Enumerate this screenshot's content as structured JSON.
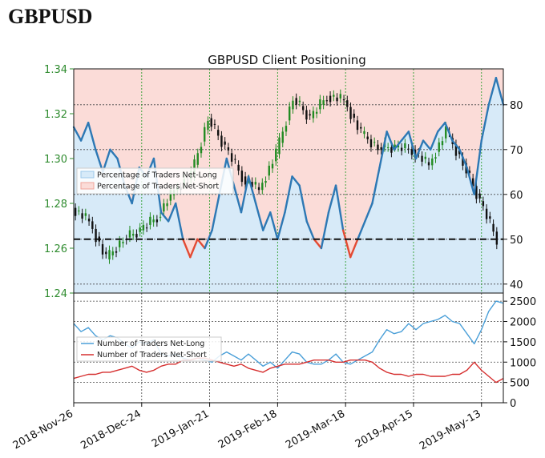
{
  "page_title": "GBPUSD",
  "colors": {
    "price_axis": "#2e8b2e",
    "long_fill": "#d7eaf8",
    "short_fill": "#fbdcd8",
    "pct_long_line": "#2d78b4",
    "pct_short_line": "#e34a33",
    "count_long_line": "#4a9fd8",
    "count_short_line": "#d62f2f",
    "candle_up": "#228b22",
    "candle_down": "#111111"
  },
  "chart_data": [
    {
      "type": "line",
      "title": "GBPUSD Client Positioning",
      "x_ticks": [
        "2018-Nov-26",
        "2018-Dec-24",
        "2019-Jan-21",
        "2019-Feb-18",
        "2019-Mar-18",
        "2019-Apr-15",
        "2019-May-13"
      ],
      "x_start": "2018-Nov-26",
      "x_end": "2019-May-22",
      "price_axis": {
        "side": "left",
        "ylim": [
          1.24,
          1.34
        ],
        "ticks": [
          "1.24",
          "1.26",
          "1.28",
          "1.30",
          "1.32",
          "1.34"
        ]
      },
      "pct_axis": {
        "side": "right",
        "ylim": [
          38,
          88
        ],
        "ticks": [
          "40",
          "50",
          "60",
          "70",
          "80"
        ]
      },
      "reference_line": 50,
      "legend": {
        "placement": "center-left",
        "entries": [
          "Percentage of Traders Net-Long",
          "Percentage of Traders Net-Short"
        ]
      },
      "grid": true,
      "series": [
        {
          "name": "Percentage of Traders Net-Long",
          "axis": "pct",
          "x": [
            "2018-Nov-26",
            "2018-Nov-29",
            "2018-Dec-02",
            "2018-Dec-05",
            "2018-Dec-08",
            "2018-Dec-11",
            "2018-Dec-14",
            "2018-Dec-17",
            "2018-Dec-20",
            "2018-Dec-23",
            "2018-Dec-26",
            "2018-Dec-29",
            "2019-Jan-01",
            "2019-Jan-04",
            "2019-Jan-07",
            "2019-Jan-10",
            "2019-Jan-13",
            "2019-Jan-16",
            "2019-Jan-19",
            "2019-Jan-22",
            "2019-Jan-25",
            "2019-Jan-28",
            "2019-Jan-31",
            "2019-Feb-03",
            "2019-Feb-06",
            "2019-Feb-09",
            "2019-Feb-12",
            "2019-Feb-15",
            "2019-Feb-18",
            "2019-Feb-21",
            "2019-Feb-24",
            "2019-Feb-27",
            "2019-Mar-02",
            "2019-Mar-05",
            "2019-Mar-08",
            "2019-Mar-11",
            "2019-Mar-14",
            "2019-Mar-17",
            "2019-Mar-20",
            "2019-Mar-23",
            "2019-Mar-26",
            "2019-Mar-29",
            "2019-Apr-01",
            "2019-Apr-04",
            "2019-Apr-07",
            "2019-Apr-10",
            "2019-Apr-13",
            "2019-Apr-16",
            "2019-Apr-19",
            "2019-Apr-22",
            "2019-Apr-25",
            "2019-Apr-28",
            "2019-May-01",
            "2019-May-04",
            "2019-May-07",
            "2019-May-10",
            "2019-May-13",
            "2019-May-16",
            "2019-May-19",
            "2019-May-22"
          ],
          "values": [
            75,
            72,
            76,
            70,
            65,
            70,
            68,
            62,
            58,
            66,
            64,
            68,
            56,
            54,
            58,
            50,
            46,
            50,
            48,
            52,
            60,
            68,
            62,
            56,
            64,
            58,
            52,
            56,
            50,
            56,
            64,
            62,
            54,
            50,
            48,
            56,
            62,
            52,
            46,
            50,
            54,
            58,
            66,
            74,
            70,
            72,
            74,
            68,
            72,
            70,
            74,
            76,
            72,
            70,
            66,
            60,
            72,
            80,
            86,
            80
          ]
        },
        {
          "name": "Percentage of Traders Net-Short",
          "axis": "pct",
          "x": [
            "2018-Nov-26",
            "2018-Nov-29",
            "2018-Dec-02",
            "2018-Dec-05",
            "2018-Dec-08",
            "2018-Dec-11",
            "2018-Dec-14",
            "2018-Dec-17",
            "2018-Dec-20",
            "2018-Dec-23",
            "2018-Dec-26",
            "2018-Dec-29",
            "2019-Jan-01",
            "2019-Jan-04",
            "2019-Jan-07",
            "2019-Jan-10",
            "2019-Jan-13",
            "2019-Jan-16",
            "2019-Jan-19",
            "2019-Jan-22",
            "2019-Jan-25",
            "2019-Jan-28",
            "2019-Jan-31",
            "2019-Feb-03",
            "2019-Feb-06",
            "2019-Feb-09",
            "2019-Feb-12",
            "2019-Feb-15",
            "2019-Feb-18",
            "2019-Feb-21",
            "2019-Feb-24",
            "2019-Feb-27",
            "2019-Mar-02",
            "2019-Mar-05",
            "2019-Mar-08",
            "2019-Mar-11",
            "2019-Mar-14",
            "2019-Mar-17",
            "2019-Mar-20",
            "2019-Mar-23",
            "2019-Mar-26",
            "2019-Mar-29",
            "2019-Apr-01",
            "2019-Apr-04",
            "2019-Apr-07",
            "2019-Apr-10",
            "2019-Apr-13",
            "2019-Apr-16",
            "2019-Apr-19",
            "2019-Apr-22",
            "2019-Apr-25",
            "2019-Apr-28",
            "2019-May-01",
            "2019-May-04",
            "2019-May-07",
            "2019-May-10",
            "2019-May-13",
            "2019-May-16",
            "2019-May-19",
            "2019-May-22"
          ],
          "values": [
            25,
            28,
            24,
            30,
            35,
            30,
            32,
            38,
            42,
            34,
            36,
            32,
            44,
            46,
            42,
            50,
            54,
            50,
            52,
            48,
            40,
            32,
            38,
            44,
            36,
            42,
            48,
            44,
            50,
            44,
            36,
            38,
            46,
            50,
            52,
            44,
            38,
            48,
            54,
            50,
            46,
            42,
            34,
            26,
            30,
            28,
            26,
            32,
            28,
            30,
            26,
            24,
            28,
            30,
            34,
            40,
            28,
            20,
            14,
            20
          ]
        },
        {
          "name": "GBPUSD",
          "axis": "price",
          "kind": "candlestick",
          "x": [
            "2018-Nov-26",
            "2018-Dec-03",
            "2018-Dec-10",
            "2018-Dec-17",
            "2018-Dec-24",
            "2018-Dec-31",
            "2019-Jan-07",
            "2019-Jan-14",
            "2019-Jan-21",
            "2019-Jan-28",
            "2019-Feb-04",
            "2019-Feb-11",
            "2019-Feb-18",
            "2019-Feb-25",
            "2019-Mar-04",
            "2019-Mar-11",
            "2019-Mar-18",
            "2019-Mar-25",
            "2019-Apr-01",
            "2019-Apr-08",
            "2019-Apr-15",
            "2019-Apr-22",
            "2019-Apr-29",
            "2019-May-06",
            "2019-May-13",
            "2019-May-20"
          ],
          "values": [
            1.278,
            1.272,
            1.255,
            1.264,
            1.268,
            1.274,
            1.286,
            1.292,
            1.318,
            1.305,
            1.292,
            1.286,
            1.302,
            1.327,
            1.318,
            1.328,
            1.326,
            1.311,
            1.305,
            1.305,
            1.304,
            1.297,
            1.312,
            1.298,
            1.281,
            1.264
          ]
        }
      ]
    },
    {
      "type": "line",
      "x_ticks": [
        "2018-Nov-26",
        "2018-Dec-24",
        "2019-Jan-21",
        "2019-Feb-18",
        "2019-Mar-18",
        "2019-Apr-15",
        "2019-May-13"
      ],
      "y_axis": {
        "side": "right",
        "ylim": [
          0,
          2700
        ],
        "ticks": [
          "0",
          "500",
          "1000",
          "1500",
          "2000",
          "2500"
        ]
      },
      "legend": {
        "placement": "center-left",
        "entries": [
          "Number of Traders Net-Long",
          "Number of Traders Net-Short"
        ]
      },
      "grid": true,
      "series": [
        {
          "name": "Number of Traders Net-Long",
          "x": [
            "2018-Nov-26",
            "2018-Nov-29",
            "2018-Dec-02",
            "2018-Dec-05",
            "2018-Dec-08",
            "2018-Dec-11",
            "2018-Dec-14",
            "2018-Dec-17",
            "2018-Dec-20",
            "2018-Dec-23",
            "2018-Dec-26",
            "2018-Dec-29",
            "2019-Jan-01",
            "2019-Jan-04",
            "2019-Jan-07",
            "2019-Jan-10",
            "2019-Jan-13",
            "2019-Jan-16",
            "2019-Jan-19",
            "2019-Jan-22",
            "2019-Jan-25",
            "2019-Jan-28",
            "2019-Jan-31",
            "2019-Feb-03",
            "2019-Feb-06",
            "2019-Feb-09",
            "2019-Feb-12",
            "2019-Feb-15",
            "2019-Feb-18",
            "2019-Feb-21",
            "2019-Feb-24",
            "2019-Feb-27",
            "2019-Mar-02",
            "2019-Mar-05",
            "2019-Mar-08",
            "2019-Mar-11",
            "2019-Mar-14",
            "2019-Mar-17",
            "2019-Mar-20",
            "2019-Mar-23",
            "2019-Mar-26",
            "2019-Mar-29",
            "2019-Apr-01",
            "2019-Apr-04",
            "2019-Apr-07",
            "2019-Apr-10",
            "2019-Apr-13",
            "2019-Apr-16",
            "2019-Apr-19",
            "2019-Apr-22",
            "2019-Apr-25",
            "2019-Apr-28",
            "2019-May-01",
            "2019-May-04",
            "2019-May-07",
            "2019-May-10",
            "2019-May-13",
            "2019-May-16",
            "2019-May-19",
            "2019-May-22"
          ],
          "values": [
            1950,
            1750,
            1850,
            1650,
            1550,
            1650,
            1600,
            1450,
            1350,
            1500,
            1450,
            1550,
            1200,
            1150,
            1200,
            1100,
            1050,
            1100,
            1050,
            1000,
            1150,
            1250,
            1150,
            1050,
            1200,
            1050,
            900,
            1000,
            850,
            1050,
            1250,
            1200,
            1000,
            950,
            950,
            1050,
            1200,
            1000,
            950,
            1050,
            1150,
            1250,
            1550,
            1800,
            1700,
            1750,
            1950,
            1800,
            1950,
            2000,
            2050,
            2150,
            2000,
            1950,
            1700,
            1450,
            1800,
            2250,
            2500,
            2450
          ]
        },
        {
          "name": "Number of Traders Net-Short",
          "x": [
            "2018-Nov-26",
            "2018-Nov-29",
            "2018-Dec-02",
            "2018-Dec-05",
            "2018-Dec-08",
            "2018-Dec-11",
            "2018-Dec-14",
            "2018-Dec-17",
            "2018-Dec-20",
            "2018-Dec-23",
            "2018-Dec-26",
            "2018-Dec-29",
            "2019-Jan-01",
            "2019-Jan-04",
            "2019-Jan-07",
            "2019-Jan-10",
            "2019-Jan-13",
            "2019-Jan-16",
            "2019-Jan-19",
            "2019-Jan-22",
            "2019-Jan-25",
            "2019-Jan-28",
            "2019-Jan-31",
            "2019-Feb-03",
            "2019-Feb-06",
            "2019-Feb-09",
            "2019-Feb-12",
            "2019-Feb-15",
            "2019-Feb-18",
            "2019-Feb-21",
            "2019-Feb-24",
            "2019-Feb-27",
            "2019-Mar-02",
            "2019-Mar-05",
            "2019-Mar-08",
            "2019-Mar-11",
            "2019-Mar-14",
            "2019-Mar-17",
            "2019-Mar-20",
            "2019-Mar-23",
            "2019-Mar-26",
            "2019-Mar-29",
            "2019-Apr-01",
            "2019-Apr-04",
            "2019-Apr-07",
            "2019-Apr-10",
            "2019-Apr-13",
            "2019-Apr-16",
            "2019-Apr-19",
            "2019-Apr-22",
            "2019-Apr-25",
            "2019-Apr-28",
            "2019-May-01",
            "2019-May-04",
            "2019-May-07",
            "2019-May-10",
            "2019-May-13",
            "2019-May-16",
            "2019-May-19",
            "2019-May-22"
          ],
          "values": [
            600,
            650,
            700,
            700,
            750,
            750,
            800,
            850,
            900,
            800,
            750,
            800,
            900,
            950,
            950,
            1050,
            1050,
            1100,
            1100,
            1050,
            1000,
            950,
            900,
            950,
            850,
            800,
            750,
            850,
            900,
            950,
            950,
            950,
            1000,
            1050,
            1050,
            1050,
            1000,
            1000,
            1050,
            1050,
            1050,
            1000,
            850,
            750,
            700,
            700,
            650,
            700,
            700,
            650,
            650,
            650,
            700,
            700,
            800,
            1000,
            800,
            650,
            500,
            600
          ]
        }
      ]
    }
  ]
}
